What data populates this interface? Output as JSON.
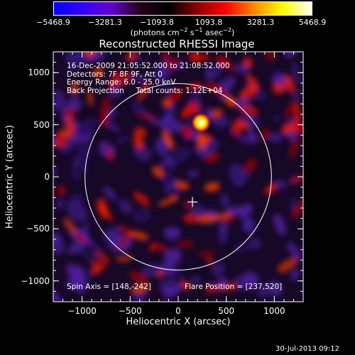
{
  "colorbar": {
    "ticks": [
      "−5468.9",
      "−3281.3",
      "−1093.8",
      "1093.8",
      "3281.3",
      "5468.9"
    ],
    "tick_values": [
      -5468.9,
      -3281.3,
      -1093.8,
      1093.8,
      3281.3,
      5468.9
    ],
    "units_main": "(photons cm",
    "units_sup1": "−2",
    "units_mid1": " s",
    "units_sup2": "−1",
    "units_mid2": " asec",
    "units_sup3": "−2",
    "units_end": ")",
    "gradient": [
      "#0000ff",
      "#3300ff",
      "#6600cc",
      "#22001a",
      "#000000",
      "#8c0000",
      "#ff0000",
      "#ff8800",
      "#ffff00",
      "#ffffff"
    ]
  },
  "plot": {
    "title": "Reconstructed RHESSI Image",
    "xlabel": "Heliocentric X (arcsec)",
    "ylabel": "Heliocentric Y (arcsec)",
    "info_lines": [
      "16-Dec-2009 21:05:52.000 to 21:08:52.000",
      "Detectors: 7F 8F 9F, Att 0",
      "Energy Range: 6.0 - 25.0 keV",
      "Back Projection     Total counts: 1.12E+04"
    ],
    "spin_axis": "Spin Axis = [148,-242]",
    "flare_position": "Flare Position = [237,520]"
  },
  "footer": {
    "timestamp": "30-Jul-2013 09:12"
  },
  "chart_data": {
    "type": "heatmap",
    "title": "Reconstructed RHESSI Image",
    "xlabel": "Heliocentric X (arcsec)",
    "ylabel": "Heliocentric Y (arcsec)",
    "xlim": [
      -1300,
      1300
    ],
    "ylim": [
      -1200,
      1200
    ],
    "xticks": [
      -1000,
      -500,
      0,
      500,
      1000
    ],
    "xtick_labels": [
      "−1000",
      "−500",
      "0",
      "500",
      "1000"
    ],
    "yticks": [
      1000,
      500,
      0,
      -500,
      -1000
    ],
    "ytick_labels": [
      "1000",
      "500",
      "0",
      "−500",
      "−1000"
    ],
    "solar_disk": {
      "center": [
        0,
        0
      ],
      "radius": 970
    },
    "sun_center_marker": [
      148,
      -242
    ],
    "flare_source": {
      "x": 237,
      "y": 520
    },
    "value_range": [
      -5468.9,
      5468.9
    ]
  }
}
